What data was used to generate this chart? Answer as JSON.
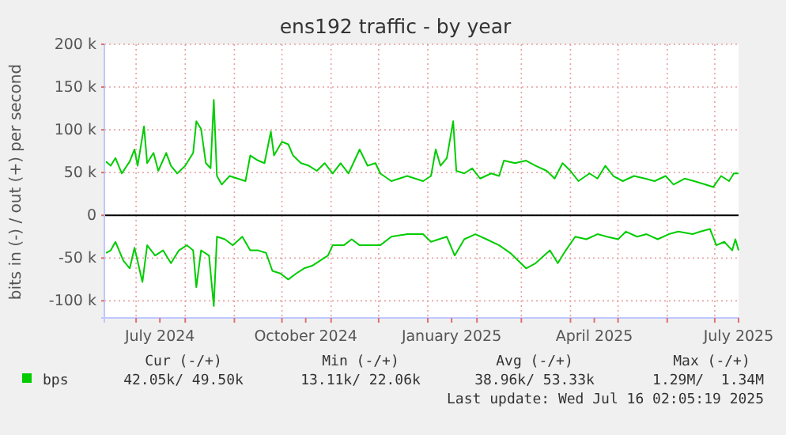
{
  "chart_data": {
    "type": "line",
    "title": "ens192 traffic - by year",
    "ylabel": "bits in (-) / out (+) per second",
    "xlim": [
      "2024-06-11",
      "2025-07-16"
    ],
    "ylim": [
      -120000,
      200000
    ],
    "yticks": [
      {
        "value": -100000,
        "label": "-100 k"
      },
      {
        "value": -50000,
        "label": "-50 k"
      },
      0,
      {
        "value": 50000,
        "label": "50 k"
      },
      {
        "value": 100000,
        "label": "100 k"
      },
      {
        "value": 150000,
        "label": "150 k"
      },
      {
        "value": 200000,
        "label": "200 k"
      }
    ],
    "xticks": [
      {
        "value": "2024-07-01",
        "label": null
      },
      {
        "value": "2024-07-16",
        "label": "July 2024"
      },
      {
        "value": "2024-08-01",
        "label": null
      },
      {
        "value": "2024-09-01",
        "label": null
      },
      {
        "value": "2024-10-01",
        "label": null
      },
      {
        "value": "2024-10-16",
        "label": "October 2024"
      },
      {
        "value": "2024-11-01",
        "label": null
      },
      {
        "value": "2024-12-01",
        "label": null
      },
      {
        "value": "2025-01-01",
        "label": null
      },
      {
        "value": "2025-01-16",
        "label": "January 2025"
      },
      {
        "value": "2025-02-01",
        "label": null
      },
      {
        "value": "2025-03-01",
        "label": null
      },
      {
        "value": "2025-04-01",
        "label": null
      },
      {
        "value": "2025-04-16",
        "label": "April 2025"
      },
      {
        "value": "2025-05-01",
        "label": null
      },
      {
        "value": "2025-06-01",
        "label": null
      },
      {
        "value": "2025-07-01",
        "label": null
      },
      {
        "value": "2025-07-16",
        "label": "July 2025"
      }
    ],
    "grid": true,
    "legend": "bottom",
    "ref_lines": [
      {
        "axis": "y",
        "value": 0,
        "color": "#000000"
      }
    ],
    "series": [
      {
        "name": "bps",
        "color": "#00cc00",
        "x": [
          "2024-06-12",
          "2024-06-15",
          "2024-06-18",
          "2024-06-22",
          "2024-06-27",
          "2024-06-30",
          "2024-07-02",
          "2024-07-06",
          "2024-07-08",
          "2024-07-12",
          "2024-07-15",
          "2024-07-20",
          "2024-07-23",
          "2024-07-27",
          "2024-08-01",
          "2024-08-06",
          "2024-08-08",
          "2024-08-11",
          "2024-08-14",
          "2024-08-17",
          "2024-08-19",
          "2024-08-21",
          "2024-08-24",
          "2024-08-29",
          "2024-09-03",
          "2024-09-08",
          "2024-09-11",
          "2024-09-16",
          "2024-09-20",
          "2024-09-24",
          "2024-09-26",
          "2024-10-01",
          "2024-10-05",
          "2024-10-08",
          "2024-10-13",
          "2024-10-18",
          "2024-10-23",
          "2024-10-28",
          "2024-11-02",
          "2024-11-07",
          "2024-11-12",
          "2024-11-19",
          "2024-11-24",
          "2024-11-29",
          "2024-12-02",
          "2024-12-09",
          "2024-12-19",
          "2024-12-29",
          "2025-01-03",
          "2025-01-06",
          "2025-01-09",
          "2025-01-13",
          "2025-01-17",
          "2025-01-19",
          "2025-01-24",
          "2025-01-29",
          "2025-02-03",
          "2025-02-10",
          "2025-02-15",
          "2025-02-18",
          "2025-02-25",
          "2025-03-04",
          "2025-03-10",
          "2025-03-17",
          "2025-03-22",
          "2025-03-27",
          "2025-04-01",
          "2025-04-06",
          "2025-04-13",
          "2025-04-18",
          "2025-04-23",
          "2025-04-28",
          "2025-05-04",
          "2025-05-11",
          "2025-05-18",
          "2025-05-24",
          "2025-05-31",
          "2025-06-05",
          "2025-06-12",
          "2025-06-18",
          "2025-06-25",
          "2025-06-30",
          "2025-07-05",
          "2025-07-10",
          "2025-07-13",
          "2025-07-16"
        ],
        "values": [
          63000,
          58000,
          67000,
          49000,
          63000,
          77000,
          58000,
          104000,
          61000,
          73000,
          52000,
          73000,
          58000,
          49000,
          58000,
          73000,
          110000,
          101000,
          61000,
          55000,
          135000,
          46000,
          36000,
          46000,
          43000,
          40000,
          70000,
          64000,
          61000,
          98000,
          70000,
          86000,
          83000,
          70000,
          61000,
          58000,
          52000,
          61000,
          49000,
          61000,
          49000,
          77000,
          58000,
          61000,
          49000,
          40000,
          46000,
          40000,
          46000,
          77000,
          58000,
          67000,
          110000,
          52000,
          49000,
          55000,
          43000,
          49000,
          46000,
          64000,
          61000,
          64000,
          58000,
          52000,
          43000,
          61000,
          52000,
          40000,
          49000,
          43000,
          58000,
          46000,
          40000,
          46000,
          43000,
          40000,
          46000,
          36000,
          43000,
          40000,
          36000,
          33000,
          46000,
          40000,
          49000,
          49000
        ]
      },
      {
        "color": "#00cc00",
        "x": [
          "2024-06-12",
          "2024-06-15",
          "2024-06-18",
          "2024-06-23",
          "2024-06-27",
          "2024-06-30",
          "2024-07-05",
          "2024-07-08",
          "2024-07-13",
          "2024-07-18",
          "2024-07-23",
          "2024-07-28",
          "2024-08-02",
          "2024-08-06",
          "2024-08-08",
          "2024-08-11",
          "2024-08-16",
          "2024-08-19",
          "2024-08-21",
          "2024-08-26",
          "2024-08-31",
          "2024-09-06",
          "2024-09-11",
          "2024-09-16",
          "2024-09-21",
          "2024-09-25",
          "2024-09-30",
          "2024-10-05",
          "2024-10-10",
          "2024-10-15",
          "2024-10-20",
          "2024-10-25",
          "2024-10-30",
          "2024-11-02",
          "2024-11-09",
          "2024-11-14",
          "2024-11-19",
          "2024-11-25",
          "2024-12-02",
          "2024-12-09",
          "2024-12-19",
          "2024-12-29",
          "2025-01-03",
          "2025-01-08",
          "2025-01-13",
          "2025-01-18",
          "2025-01-24",
          "2025-01-31",
          "2025-02-07",
          "2025-02-15",
          "2025-02-22",
          "2025-02-27",
          "2025-03-04",
          "2025-03-10",
          "2025-03-19",
          "2025-03-24",
          "2025-03-29",
          "2025-04-04",
          "2025-04-11",
          "2025-04-18",
          "2025-04-24",
          "2025-05-01",
          "2025-05-06",
          "2025-05-13",
          "2025-05-19",
          "2025-05-26",
          "2025-06-02",
          "2025-06-08",
          "2025-06-17",
          "2025-06-22",
          "2025-06-28",
          "2025-07-02",
          "2025-07-07",
          "2025-07-12",
          "2025-07-14",
          "2025-07-16"
        ],
        "values": [
          -44000,
          -41000,
          -31000,
          -53000,
          -62000,
          -38000,
          -78000,
          -35000,
          -47000,
          -41000,
          -56000,
          -41000,
          -35000,
          -41000,
          -84000,
          -41000,
          -47000,
          -106000,
          -25000,
          -28000,
          -35000,
          -25000,
          -41000,
          -41000,
          -44000,
          -65000,
          -68000,
          -75000,
          -68000,
          -62000,
          -59000,
          -53000,
          -47000,
          -35000,
          -35000,
          -28000,
          -35000,
          -35000,
          -35000,
          -25000,
          -22000,
          -22000,
          -31000,
          -28000,
          -25000,
          -47000,
          -28000,
          -22000,
          -28000,
          -35000,
          -44000,
          -53000,
          -62000,
          -56000,
          -41000,
          -56000,
          -41000,
          -25000,
          -28000,
          -22000,
          -25000,
          -28000,
          -19000,
          -25000,
          -22000,
          -28000,
          -22000,
          -19000,
          -22000,
          -19000,
          -16000,
          -35000,
          -31000,
          -41000,
          -28000,
          -41000
        ]
      }
    ],
    "annotations": [
      "Cur (-/+)",
      "Min (-/+)",
      "Avg (-/+)",
      "Max (-/+)",
      "42.05k/ 49.50k",
      "13.11k/ 22.06k",
      "38.96k/ 53.33k",
      "1.29M/  1.34M",
      "Last update: Wed Jul 16 02:05:19 2025"
    ]
  }
}
